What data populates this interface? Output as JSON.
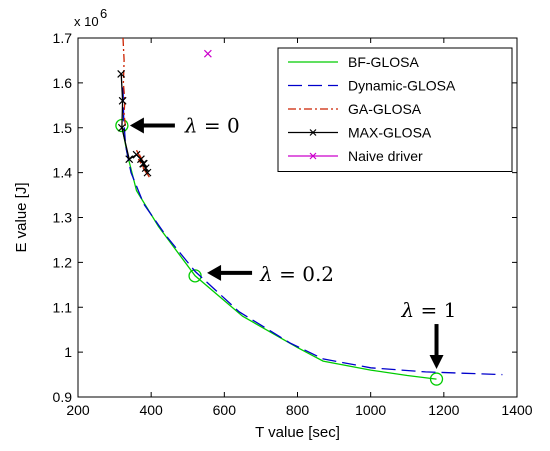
{
  "chart_data": {
    "type": "line",
    "title": "",
    "xlabel": "T value [sec]",
    "ylabel": "E value [J]",
    "y_scale_label": "x 10",
    "y_scale_exponent": "6",
    "xlim": [
      200,
      1400
    ],
    "ylim": [
      0.9,
      1.7
    ],
    "xticks": [
      200,
      400,
      600,
      800,
      1000,
      1200,
      1400
    ],
    "yticks": [
      0.9,
      1,
      1.1,
      1.2,
      1.3,
      1.4,
      1.5,
      1.6,
      1.7
    ],
    "xtick_labels": [
      "200",
      "400",
      "600",
      "800",
      "1000",
      "1200",
      "1400"
    ],
    "ytick_labels": [
      "0.9",
      "1",
      "1.1",
      "1.2",
      "1.3",
      "1.4",
      "1.5",
      "1.6",
      "1.7"
    ],
    "grid": false,
    "legend_position": "top-right",
    "series": [
      {
        "name": "BF-GLOSA",
        "color": "#00cc00",
        "dash": "solid",
        "marker": "circle-at-annotated",
        "x": [
          320,
          335,
          360,
          420,
          520,
          650,
          800,
          870,
          1000,
          1100,
          1180
        ],
        "y": [
          1.505,
          1.44,
          1.36,
          1.28,
          1.17,
          1.08,
          1.01,
          0.98,
          0.96,
          0.948,
          0.94
        ],
        "highlight_points": [
          [
            320,
            1.505
          ],
          [
            520,
            1.17
          ],
          [
            1180,
            0.94
          ]
        ]
      },
      {
        "name": "Dynamic-GLOSA",
        "color": "#0000cc",
        "dash": "long-dash",
        "marker": "none",
        "x": [
          323,
          325,
          330,
          345,
          380,
          440,
          520,
          640,
          780,
          870,
          1000,
          1150,
          1360
        ],
        "y": [
          1.59,
          1.52,
          1.46,
          1.4,
          1.33,
          1.26,
          1.18,
          1.09,
          1.02,
          0.985,
          0.965,
          0.956,
          0.95
        ]
      },
      {
        "name": "GA-GLOSA",
        "color": "#cc2200",
        "dash": "dash-dot",
        "marker": "none",
        "x": [
          323,
          326,
          324,
          328,
          326,
          330
        ],
        "y": [
          1.7,
          1.65,
          1.6,
          1.56,
          1.53,
          1.5
        ],
        "cluster_x": [
          360,
          372,
          380,
          368,
          390,
          378,
          395,
          365,
          385
        ],
        "cluster_y": [
          1.45,
          1.43,
          1.42,
          1.44,
          1.4,
          1.41,
          1.39,
          1.43,
          1.42
        ]
      },
      {
        "name": "MAX-GLOSA",
        "color": "#000000",
        "dash": "solid",
        "marker": "x",
        "x": [
          318,
          322,
          320,
          340,
          360,
          372,
          380,
          390,
          385,
          378
        ],
        "y": [
          1.62,
          1.56,
          1.5,
          1.43,
          1.44,
          1.43,
          1.42,
          1.4,
          1.41,
          1.42
        ]
      },
      {
        "name": "Naive driver",
        "color": "#cc00cc",
        "dash": "none",
        "marker": "x",
        "x": [
          555
        ],
        "y": [
          1.665
        ]
      }
    ],
    "annotations": [
      {
        "symbol": "λ",
        "text": " = 0",
        "x": 320,
        "y": 1.505
      },
      {
        "symbol": "λ",
        "text": " = 0.2",
        "x": 520,
        "y": 1.17
      },
      {
        "symbol": "λ",
        "text": " = 1",
        "x": 1180,
        "y": 0.94
      }
    ]
  }
}
